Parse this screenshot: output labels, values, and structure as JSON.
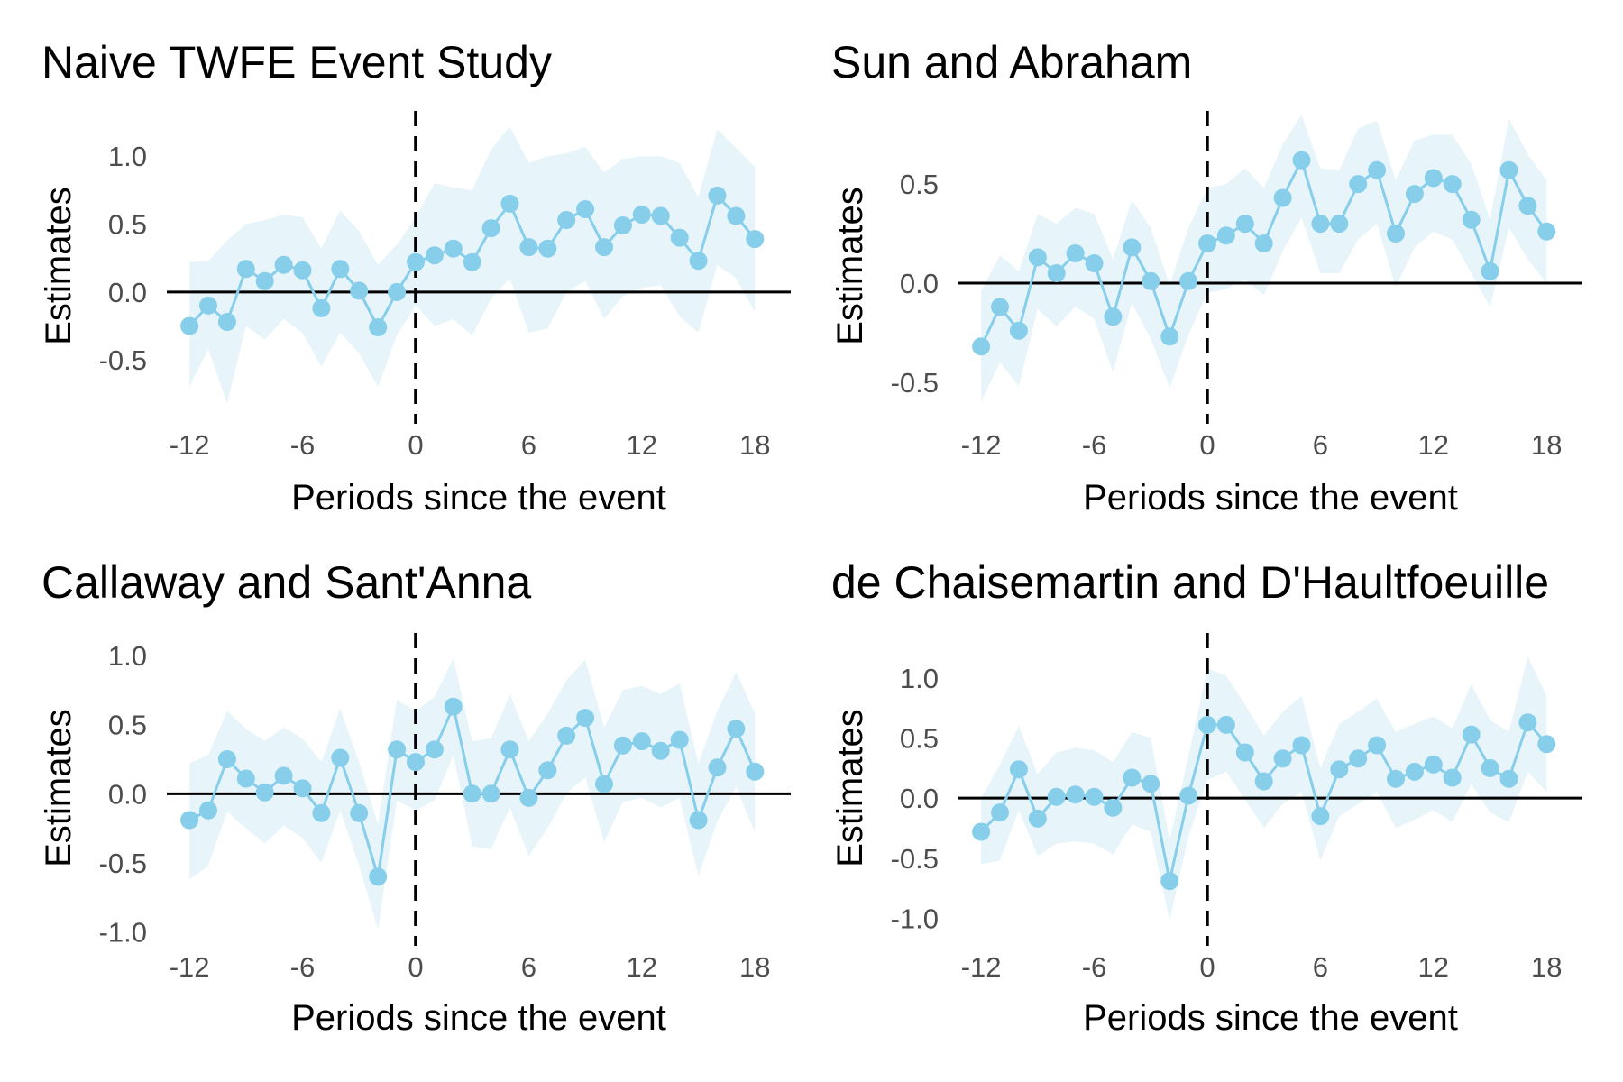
{
  "colors": {
    "series": "#87CEEB",
    "band": "#87CEEB",
    "band_opacity": 0.2,
    "reference_line": "#000000",
    "tick_text": "#4d4d4d"
  },
  "chart_data": [
    {
      "type": "line",
      "title": "Naive TWFE Event Study",
      "xlabel": "Periods since the event",
      "ylabel": "Estimates",
      "xlim": [
        -13.2,
        19.9
      ],
      "ylim": [
        -0.97,
        1.32
      ],
      "xticks": [
        -12,
        -6,
        0,
        6,
        12,
        18
      ],
      "xtick_labels": [
        "-12",
        "-6",
        "0",
        "6",
        "12",
        "18"
      ],
      "yticks": [
        -0.5,
        0.0,
        0.5,
        1.0
      ],
      "ytick_labels": [
        "-0.5",
        "0.0",
        "0.5",
        "1.0"
      ],
      "hline": 0,
      "vline": 0,
      "x": [
        -12,
        -11,
        -10,
        -9,
        -8,
        -7,
        -6,
        -5,
        -4,
        -3,
        -2,
        -1,
        0,
        1,
        2,
        3,
        4,
        5,
        6,
        7,
        8,
        9,
        10,
        11,
        12,
        13,
        14,
        15,
        16,
        17,
        18
      ],
      "series": [
        {
          "values": [
            -0.25,
            -0.1,
            -0.22,
            0.17,
            0.08,
            0.2,
            0.16,
            -0.12,
            0.17,
            0.01,
            -0.26,
            0.0,
            0.22,
            0.27,
            0.32,
            0.22,
            0.47,
            0.65,
            0.33,
            0.32,
            0.53,
            0.61,
            0.33,
            0.49,
            0.57,
            0.56,
            0.4,
            0.23,
            0.71,
            0.56,
            0.39
          ],
          "lower": [
            -0.7,
            -0.42,
            -0.82,
            -0.25,
            -0.35,
            -0.2,
            -0.3,
            -0.55,
            -0.3,
            -0.45,
            -0.7,
            -0.32,
            -0.1,
            -0.25,
            -0.2,
            -0.32,
            -0.05,
            0.1,
            -0.3,
            -0.27,
            0.0,
            0.08,
            -0.2,
            -0.03,
            0.03,
            0.05,
            -0.18,
            -0.3,
            0.2,
            0.1,
            -0.15
          ],
          "upper": [
            0.22,
            0.23,
            0.38,
            0.5,
            0.53,
            0.57,
            0.55,
            0.32,
            0.6,
            0.45,
            0.2,
            0.35,
            0.55,
            0.8,
            0.77,
            0.75,
            1.05,
            1.22,
            0.95,
            1.0,
            1.02,
            1.07,
            0.88,
            0.98,
            1.0,
            1.0,
            0.95,
            0.7,
            1.2,
            1.06,
            0.92
          ]
        }
      ]
    },
    {
      "type": "line",
      "title": "Sun and Abraham",
      "xlabel": "Periods since the event",
      "ylabel": "Estimates",
      "xlim": [
        -13.2,
        19.9
      ],
      "ylim": [
        -0.71,
        0.86
      ],
      "xticks": [
        -12,
        -6,
        0,
        6,
        12,
        18
      ],
      "xtick_labels": [
        "-12",
        "-6",
        "0",
        "6",
        "12",
        "18"
      ],
      "yticks": [
        -0.5,
        0.0,
        0.5
      ],
      "ytick_labels": [
        "-0.5",
        "0.0",
        "0.5"
      ],
      "hline": 0,
      "vline": 0,
      "x": [
        -12,
        -11,
        -10,
        -9,
        -8,
        -7,
        -6,
        -5,
        -4,
        -3,
        -2,
        -1,
        0,
        1,
        2,
        3,
        4,
        5,
        6,
        7,
        8,
        9,
        10,
        11,
        12,
        13,
        14,
        15,
        16,
        17,
        18
      ],
      "series": [
        {
          "values": [
            -0.32,
            -0.12,
            -0.24,
            0.13,
            0.05,
            0.15,
            0.1,
            -0.17,
            0.18,
            0.01,
            -0.27,
            0.01,
            0.2,
            0.24,
            0.3,
            0.2,
            0.43,
            0.62,
            0.3,
            0.3,
            0.5,
            0.57,
            0.25,
            0.45,
            0.53,
            0.5,
            0.32,
            0.06,
            0.57,
            0.39,
            0.26
          ],
          "lower": [
            -0.6,
            -0.4,
            -0.52,
            -0.13,
            -0.22,
            -0.12,
            -0.18,
            -0.45,
            -0.1,
            -0.28,
            -0.53,
            -0.26,
            -0.05,
            -0.03,
            0.02,
            -0.06,
            0.16,
            0.33,
            0.05,
            0.05,
            0.22,
            0.3,
            -0.02,
            0.18,
            0.26,
            0.22,
            0.05,
            -0.12,
            0.28,
            0.12,
            0.0
          ],
          "upper": [
            -0.04,
            0.14,
            0.06,
            0.35,
            0.3,
            0.38,
            0.35,
            0.12,
            0.42,
            0.28,
            -0.01,
            0.28,
            0.48,
            0.5,
            0.58,
            0.48,
            0.7,
            0.85,
            0.58,
            0.57,
            0.78,
            0.82,
            0.52,
            0.72,
            0.75,
            0.75,
            0.6,
            0.32,
            0.83,
            0.65,
            0.52
          ]
        }
      ]
    },
    {
      "type": "line",
      "title": "Callaway and Sant'Anna",
      "xlabel": "Periods since the event",
      "ylabel": "Estimates",
      "xlim": [
        -13.2,
        19.9
      ],
      "ylim": [
        -1.1,
        1.15
      ],
      "xticks": [
        -12,
        -6,
        0,
        6,
        12,
        18
      ],
      "xtick_labels": [
        "-12",
        "-6",
        "0",
        "6",
        "12",
        "18"
      ],
      "yticks": [
        -1.0,
        -0.5,
        0.0,
        0.5,
        1.0
      ],
      "ytick_labels": [
        "-1.0",
        "-0.5",
        "0.0",
        "0.5",
        "1.0"
      ],
      "hline": 0,
      "vline": 0,
      "x": [
        -12,
        -11,
        -10,
        -9,
        -8,
        -7,
        -6,
        -5,
        -4,
        -3,
        -2,
        -1,
        0,
        1,
        2,
        3,
        4,
        5,
        6,
        7,
        8,
        9,
        10,
        11,
        12,
        13,
        14,
        15,
        16,
        17,
        18
      ],
      "series": [
        {
          "values": [
            -0.19,
            -0.12,
            0.25,
            0.11,
            0.01,
            0.13,
            0.04,
            -0.14,
            0.26,
            -0.14,
            -0.6,
            0.32,
            0.23,
            0.32,
            0.63,
            0.0,
            0.0,
            0.32,
            -0.03,
            0.17,
            0.42,
            0.55,
            0.07,
            0.35,
            0.38,
            0.31,
            0.39,
            -0.19,
            0.19,
            0.47,
            0.16
          ],
          "lower": [
            -0.62,
            -0.52,
            -0.13,
            -0.25,
            -0.36,
            -0.23,
            -0.32,
            -0.5,
            -0.12,
            -0.52,
            -0.98,
            -0.05,
            -0.12,
            -0.05,
            0.28,
            -0.38,
            -0.4,
            -0.1,
            -0.45,
            -0.25,
            0.0,
            0.12,
            -0.35,
            -0.06,
            -0.03,
            -0.1,
            -0.03,
            -0.6,
            -0.2,
            0.05,
            -0.28
          ],
          "upper": [
            0.22,
            0.28,
            0.6,
            0.47,
            0.38,
            0.48,
            0.4,
            0.23,
            0.62,
            0.23,
            -0.22,
            0.68,
            0.6,
            0.7,
            0.98,
            0.38,
            0.4,
            0.72,
            0.38,
            0.58,
            0.82,
            0.97,
            0.48,
            0.75,
            0.78,
            0.72,
            0.8,
            0.22,
            0.6,
            0.88,
            0.58
          ]
        }
      ]
    },
    {
      "type": "line",
      "title": "de Chaisemartin and D'Haultfoeuille",
      "xlabel": "Periods since the event",
      "ylabel": "Estimates",
      "xlim": [
        -13.2,
        19.9
      ],
      "ylim": [
        -1.23,
        1.36
      ],
      "xticks": [
        -12,
        -6,
        0,
        6,
        12,
        18
      ],
      "xtick_labels": [
        "-12",
        "-6",
        "0",
        "6",
        "12",
        "18"
      ],
      "yticks": [
        -1.0,
        -0.5,
        0.0,
        0.5,
        1.0
      ],
      "ytick_labels": [
        "-1.0",
        "-0.5",
        "0.0",
        "0.5",
        "1.0"
      ],
      "hline": 0,
      "vline": 0,
      "x": [
        -12,
        -11,
        -10,
        -9,
        -8,
        -7,
        -6,
        -5,
        -4,
        -3,
        -2,
        -1,
        0,
        1,
        2,
        3,
        4,
        5,
        6,
        7,
        8,
        9,
        10,
        11,
        12,
        13,
        14,
        15,
        16,
        17,
        18
      ],
      "series": [
        {
          "values": [
            -0.28,
            -0.12,
            0.24,
            -0.17,
            0.01,
            0.03,
            0.01,
            -0.08,
            0.17,
            0.12,
            -0.69,
            0.02,
            0.61,
            0.61,
            0.38,
            0.14,
            0.33,
            0.44,
            -0.15,
            0.24,
            0.33,
            0.44,
            0.16,
            0.22,
            0.28,
            0.17,
            0.53,
            0.25,
            0.16,
            0.63,
            0.45
          ],
          "lower": [
            -0.55,
            -0.52,
            -0.1,
            -0.48,
            -0.38,
            -0.36,
            -0.38,
            -0.47,
            -0.22,
            -0.28,
            -1.02,
            -0.32,
            0.15,
            0.22,
            -0.01,
            -0.25,
            -0.05,
            0.05,
            -0.52,
            -0.15,
            -0.05,
            0.05,
            -0.25,
            -0.18,
            -0.1,
            -0.2,
            0.12,
            -0.12,
            -0.2,
            0.22,
            0.05
          ],
          "upper": [
            0.0,
            0.28,
            0.6,
            0.2,
            0.38,
            0.42,
            0.4,
            0.3,
            0.55,
            0.5,
            -0.35,
            0.35,
            1.08,
            1.02,
            0.78,
            0.52,
            0.72,
            0.85,
            0.25,
            0.62,
            0.72,
            0.83,
            0.55,
            0.62,
            0.68,
            0.58,
            0.95,
            0.65,
            0.55,
            1.18,
            0.85
          ]
        }
      ]
    }
  ]
}
